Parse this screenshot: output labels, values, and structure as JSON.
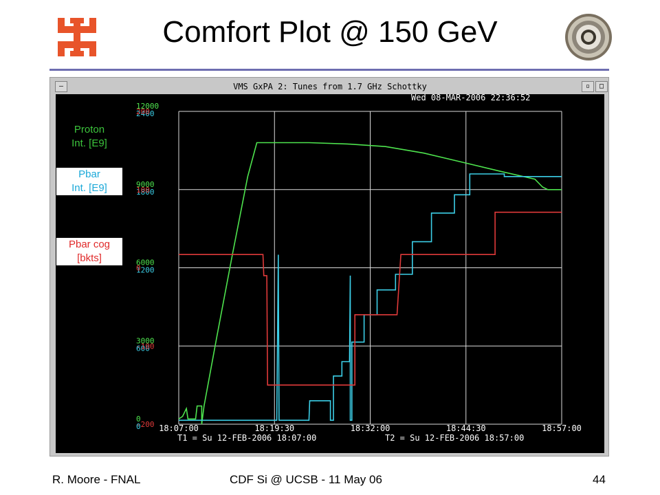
{
  "slide": {
    "title": "Comfort Plot @ 150 GeV",
    "footer_left": "R. Moore - FNAL",
    "footer_center": "CDF Si @ UCSB - 11 May 06",
    "footer_right": "44"
  },
  "window": {
    "title": "VMS GxPA 2: Tunes from 1.7 GHz Schottky",
    "timestamp": "Wed 08-MAR-2006 22:36:52",
    "t1": "T1 = Su 12-FEB-2006 18:07:00",
    "t2": "T2 = Su 12-FEB-2006 18:57:00"
  },
  "labels": {
    "proton": "Proton\nInt. [E9]",
    "pbar": "Pbar\nInt. [E9]",
    "cog": "Pbar cog\n[bkts]"
  },
  "colors": {
    "proton": "#4ee44e",
    "pbar": "#3ccfe8",
    "cog": "#e03a3a",
    "grid": "#dcdcdc",
    "background": "#000000"
  },
  "chart_data": {
    "type": "line",
    "x_ticks": [
      "18:07:00",
      "18:19:30",
      "18:32:00",
      "18:44:30",
      "18:57:00"
    ],
    "xlim": [
      0,
      50
    ],
    "x_unit": "minutes after 18:07:00",
    "axes": {
      "proton": {
        "ticks": [
          "0",
          "3000",
          "6000",
          "9000",
          "12000"
        ],
        "ylim": [
          0,
          12000
        ]
      },
      "pbar": {
        "ticks": [
          "0",
          "600",
          "1200",
          "1800",
          "2400"
        ],
        "ylim": [
          0,
          2400
        ]
      },
      "cog": {
        "ticks": [
          "-200",
          "-100",
          "0",
          "100",
          "200"
        ],
        "ylim": [
          -200,
          200
        ]
      }
    },
    "series": [
      {
        "name": "Proton Int. [E9]",
        "axis": "proton",
        "color": "#4ee44e",
        "points": [
          [
            0,
            200
          ],
          [
            0.5,
            300
          ],
          [
            1,
            600
          ],
          [
            1.2,
            200
          ],
          [
            2.2,
            200
          ],
          [
            2.4,
            700
          ],
          [
            3,
            700
          ],
          [
            3,
            0
          ],
          [
            3.3,
            700
          ],
          [
            5,
            3400
          ],
          [
            7,
            6500
          ],
          [
            9,
            9500
          ],
          [
            10.2,
            10800
          ],
          [
            12.5,
            10800
          ],
          [
            17,
            10800
          ],
          [
            22,
            10750
          ],
          [
            27,
            10650
          ],
          [
            32,
            10400
          ],
          [
            37,
            10050
          ],
          [
            42,
            9700
          ],
          [
            46.5,
            9400
          ],
          [
            47.5,
            9100
          ],
          [
            48.2,
            9000
          ],
          [
            50,
            9000
          ]
        ]
      },
      {
        "name": "Pbar Int. [E9]",
        "axis": "pbar",
        "color": "#3ccfe8",
        "points": [
          [
            0,
            30
          ],
          [
            12.5,
            30
          ],
          [
            12.8,
            30
          ],
          [
            13,
            1300
          ],
          [
            13.1,
            30
          ],
          [
            17,
            30
          ],
          [
            17.1,
            180
          ],
          [
            19.8,
            180
          ],
          [
            19.8,
            30
          ],
          [
            20.2,
            30
          ],
          [
            20.2,
            370
          ],
          [
            21.3,
            370
          ],
          [
            21.3,
            480
          ],
          [
            22.3,
            480
          ],
          [
            22.4,
            1140
          ],
          [
            22.4,
            30
          ],
          [
            22.6,
            30
          ],
          [
            22.6,
            630
          ],
          [
            24.2,
            630
          ],
          [
            24.2,
            840
          ],
          [
            25.9,
            840
          ],
          [
            25.9,
            1030
          ],
          [
            28.3,
            1030
          ],
          [
            28.3,
            1150
          ],
          [
            30.5,
            1150
          ],
          [
            30.5,
            1400
          ],
          [
            33,
            1400
          ],
          [
            33,
            1620
          ],
          [
            36,
            1620
          ],
          [
            36,
            1760
          ],
          [
            38,
            1760
          ],
          [
            38,
            1920
          ],
          [
            42.5,
            1920
          ],
          [
            42.5,
            1900
          ],
          [
            50,
            1900
          ]
        ]
      },
      {
        "name": "Pbar cog [bkts]",
        "axis": "cog",
        "color": "#e03a3a",
        "points": [
          [
            0,
            17
          ],
          [
            11,
            17
          ],
          [
            11.1,
            -10
          ],
          [
            11.5,
            -10
          ],
          [
            11.6,
            -150
          ],
          [
            22.8,
            -150
          ],
          [
            23,
            -150
          ],
          [
            23,
            -60
          ],
          [
            28.5,
            -60
          ],
          [
            28.5,
            -60
          ],
          [
            29,
            17
          ],
          [
            41,
            17
          ],
          [
            41.3,
            17
          ],
          [
            41.3,
            71
          ],
          [
            42.5,
            71
          ],
          [
            50,
            71
          ]
        ]
      }
    ]
  }
}
